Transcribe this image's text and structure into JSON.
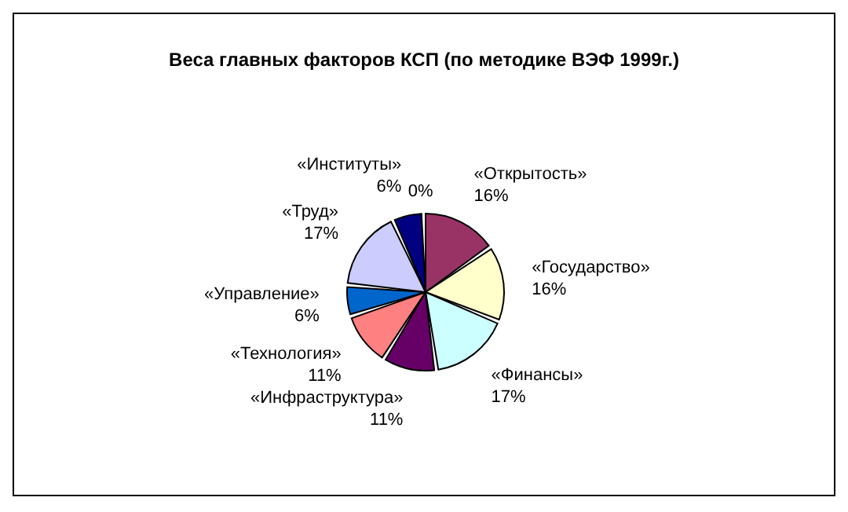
{
  "chart_data": {
    "type": "pie",
    "title": "Веса главных факторов КСП (по методике ВЭФ 1999г.)",
    "categories": [
      "«Открытость»",
      "«Государство»",
      "«Финансы»",
      "«Инфраструктура»",
      "«Технология»",
      "«Управление»",
      "«Труд»",
      "«Институты»",
      null
    ],
    "values": [
      16,
      16,
      17,
      11,
      11,
      6,
      17,
      6,
      0
    ],
    "value_labels": [
      "16%",
      "16%",
      "17%",
      "11%",
      "11%",
      "6%",
      "17%",
      "6%",
      "0%"
    ],
    "colors": [
      "#993366",
      "#ffffcc",
      "#ccffff",
      "#660066",
      "#ff8080",
      "#0066cc",
      "#ccccff",
      "#000080",
      "#ffffff"
    ],
    "legend": false
  }
}
